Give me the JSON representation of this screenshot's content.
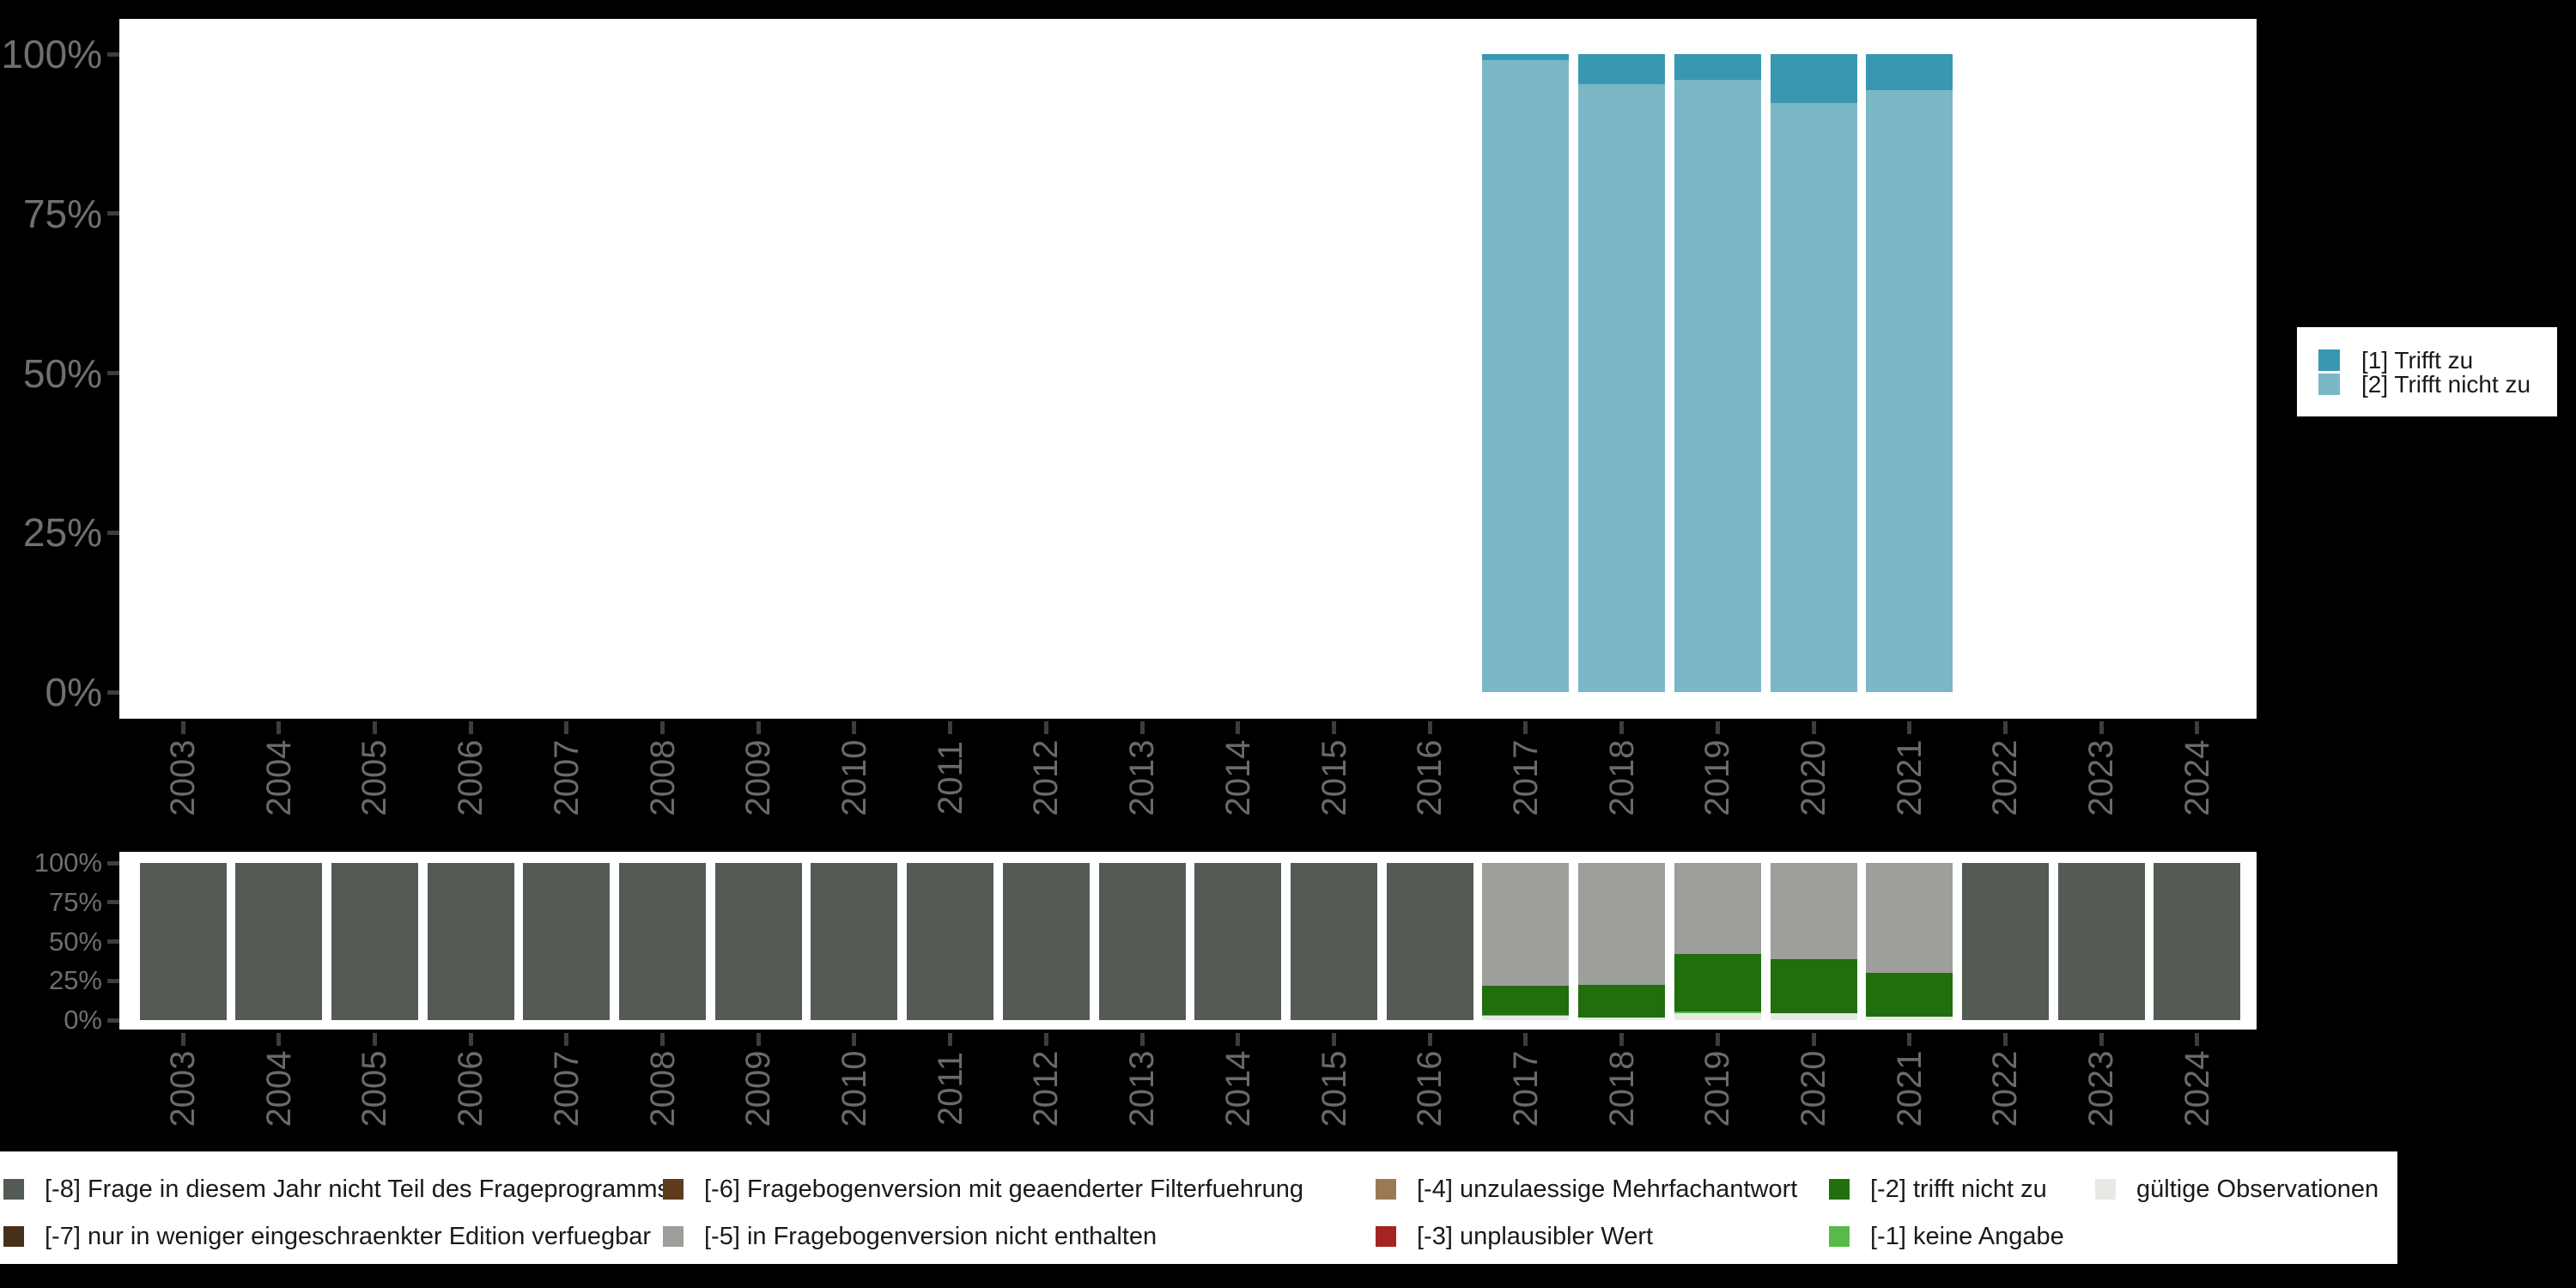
{
  "colors": {
    "background": "#000000",
    "panel": "#ffffff",
    "axis_text": "#6f6f6f",
    "tick": "#3d3d3d",
    "legend_text": "#1a1a1a",
    "trifft_zu": "#3998b1",
    "trifft_nicht_zu": "#7ab8c8",
    "m8": "#545b54",
    "m7": "#47301b",
    "m6": "#5e3c1e",
    "m5": "#9c9f9a",
    "m4": "#9a7a55",
    "m3": "#a62323",
    "m2": "#216e0e",
    "m1": "#57bb49",
    "valid": "#e6eae2"
  },
  "chart_data": [
    {
      "type": "bar",
      "stacked": true,
      "percent": true,
      "title": "",
      "xlabel": "",
      "ylabel": "",
      "categories": [
        "2003",
        "2004",
        "2005",
        "2006",
        "2007",
        "2008",
        "2009",
        "2010",
        "2011",
        "2012",
        "2013",
        "2014",
        "2015",
        "2016",
        "2017",
        "2018",
        "2019",
        "2020",
        "2021",
        "2022",
        "2023",
        "2024"
      ],
      "y_tick_labels": [
        "100%",
        "75%",
        "50%",
        "25%",
        "0%"
      ],
      "y_tick_values": [
        100,
        75,
        50,
        25,
        0
      ],
      "ylim": [
        0,
        100
      ],
      "grid": false,
      "legend_position": "right",
      "series": [
        {
          "name": "[1] Trifft zu",
          "color_key": "trifft_zu",
          "values": [
            null,
            null,
            null,
            null,
            null,
            null,
            null,
            null,
            null,
            null,
            null,
            null,
            null,
            null,
            1.0,
            4.7,
            4.0,
            7.7,
            5.7,
            null,
            null,
            null
          ]
        },
        {
          "name": "[2] Trifft nicht zu",
          "color_key": "trifft_nicht_zu",
          "values": [
            null,
            null,
            null,
            null,
            null,
            null,
            null,
            null,
            null,
            null,
            null,
            null,
            null,
            null,
            99.0,
            95.3,
            96.0,
            92.3,
            94.3,
            null,
            null,
            null
          ]
        }
      ]
    },
    {
      "type": "bar",
      "stacked": true,
      "percent": true,
      "title": "",
      "xlabel": "",
      "ylabel": "",
      "categories": [
        "2003",
        "2004",
        "2005",
        "2006",
        "2007",
        "2008",
        "2009",
        "2010",
        "2011",
        "2012",
        "2013",
        "2014",
        "2015",
        "2016",
        "2017",
        "2018",
        "2019",
        "2020",
        "2021",
        "2022",
        "2023",
        "2024"
      ],
      "y_tick_labels": [
        "100%",
        "75%",
        "50%",
        "25%",
        "0%"
      ],
      "y_tick_values": [
        100,
        75,
        50,
        25,
        0
      ],
      "ylim": [
        0,
        100
      ],
      "grid": false,
      "legend_position": "bottom",
      "series": [
        {
          "name": "[-8] Frage in diesem Jahr nicht Teil des Frageprogramms",
          "color_key": "m8",
          "values": [
            100,
            100,
            100,
            100,
            100,
            100,
            100,
            100,
            100,
            100,
            100,
            100,
            100,
            100,
            null,
            null,
            null,
            null,
            null,
            100,
            100,
            100
          ]
        },
        {
          "name": "[-7] nur in weniger eingeschraenkter Edition verfuegbar",
          "color_key": "m7",
          "values": [
            null,
            null,
            null,
            null,
            null,
            null,
            null,
            null,
            null,
            null,
            null,
            null,
            null,
            null,
            null,
            null,
            null,
            null,
            null,
            null,
            null,
            null
          ]
        },
        {
          "name": "[-6] Fragebogenversion mit geaenderter Filterfuehrung",
          "color_key": "m6",
          "values": [
            null,
            null,
            null,
            null,
            null,
            null,
            null,
            null,
            null,
            null,
            null,
            null,
            null,
            null,
            null,
            null,
            null,
            null,
            null,
            null,
            null,
            null
          ]
        },
        {
          "name": "[-5] in Fragebogenversion nicht enthalten",
          "color_key": "m5",
          "values": [
            null,
            null,
            null,
            null,
            null,
            null,
            null,
            null,
            null,
            null,
            null,
            null,
            null,
            null,
            78.0,
            77.5,
            58.0,
            61.0,
            70.0,
            null,
            null,
            null
          ]
        },
        {
          "name": "[-4] unzulaessige Mehrfachantwort",
          "color_key": "m4",
          "values": [
            null,
            null,
            null,
            null,
            null,
            null,
            null,
            null,
            null,
            null,
            null,
            null,
            null,
            null,
            null,
            null,
            null,
            null,
            null,
            null,
            null,
            null
          ]
        },
        {
          "name": "[-3] unplausibler Wert",
          "color_key": "m3",
          "values": [
            null,
            null,
            null,
            null,
            null,
            null,
            null,
            null,
            null,
            null,
            null,
            null,
            null,
            null,
            null,
            null,
            null,
            null,
            null,
            null,
            null,
            null
          ]
        },
        {
          "name": "[-2] trifft nicht zu",
          "color_key": "m2",
          "values": [
            null,
            null,
            null,
            null,
            null,
            null,
            null,
            null,
            null,
            null,
            null,
            null,
            null,
            null,
            18.5,
            21.0,
            36.5,
            34.5,
            28.0,
            null,
            null,
            null
          ]
        },
        {
          "name": "[-1] keine Angabe",
          "color_key": "m1",
          "values": [
            null,
            null,
            null,
            null,
            null,
            null,
            null,
            null,
            null,
            null,
            null,
            null,
            null,
            null,
            1.0,
            null,
            1.0,
            null,
            null,
            null,
            null,
            null
          ]
        },
        {
          "name": "gültige Observationen",
          "color_key": "valid",
          "values": [
            null,
            null,
            null,
            null,
            null,
            null,
            null,
            null,
            null,
            null,
            null,
            null,
            null,
            null,
            2.5,
            1.5,
            4.5,
            4.5,
            2.0,
            null,
            null,
            null
          ]
        }
      ],
      "legend_columns": [
        [
          0,
          1
        ],
        [
          2,
          3
        ],
        [
          4,
          5
        ],
        [
          6,
          7
        ],
        [
          8
        ]
      ]
    }
  ]
}
